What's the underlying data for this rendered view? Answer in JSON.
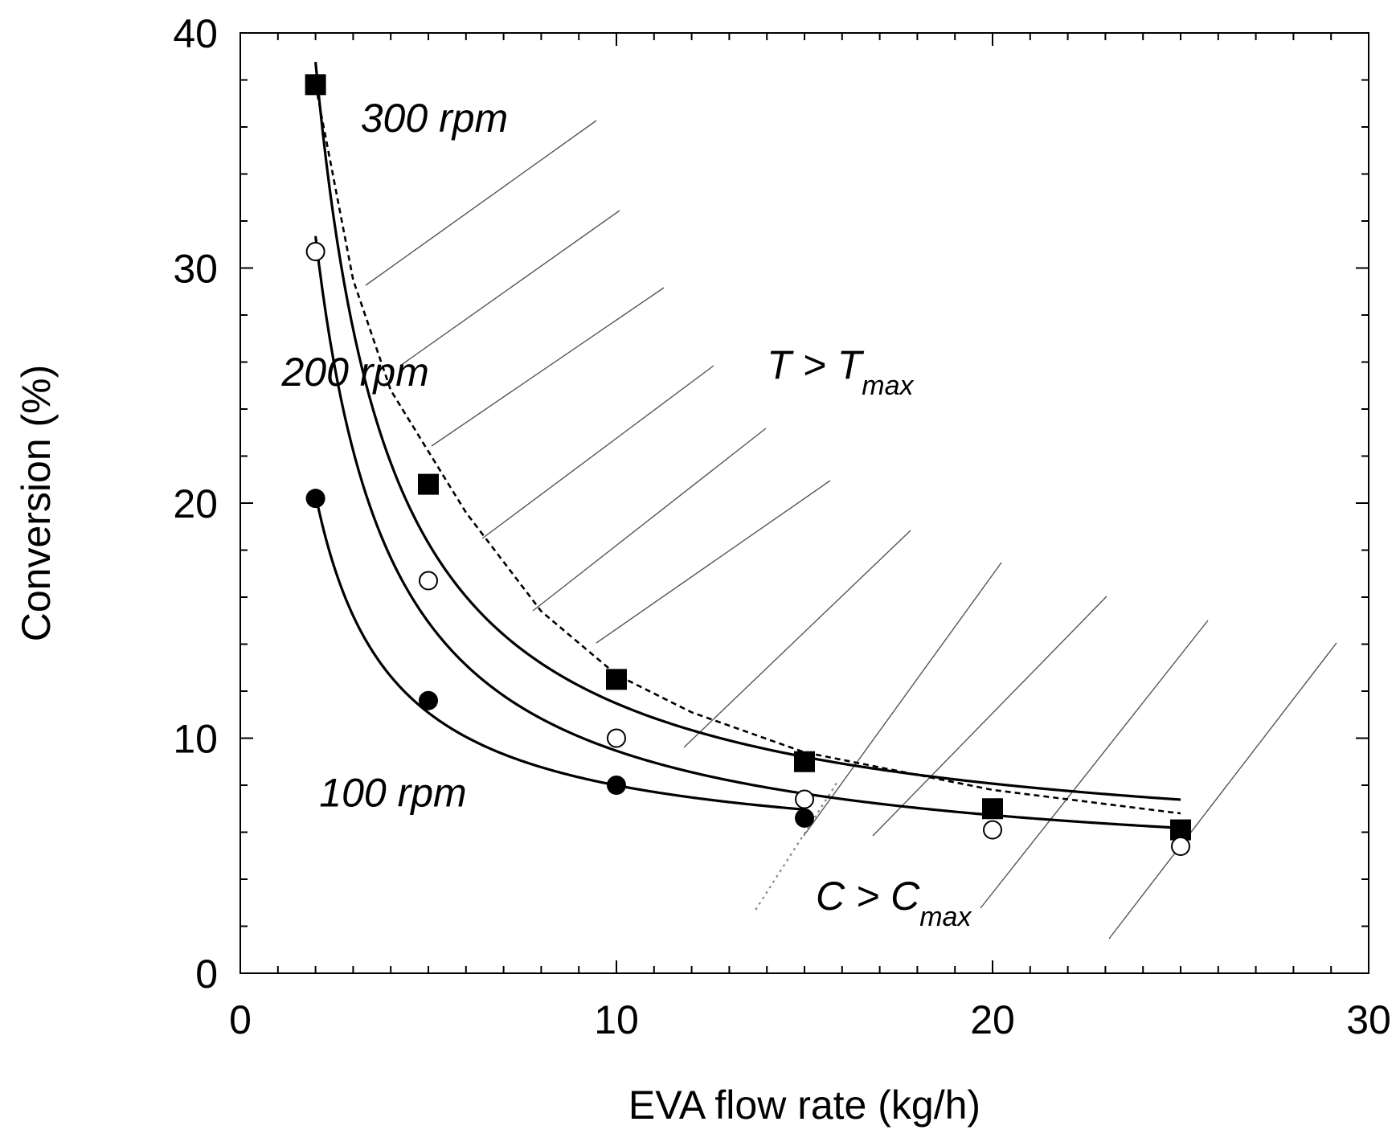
{
  "chart_data": {
    "type": "scatter",
    "xlabel": "EVA flow rate (kg/h)",
    "ylabel": "Conversion (%)",
    "xlim": [
      0,
      30
    ],
    "ylim": [
      0,
      40
    ],
    "x_ticks": [
      0,
      10,
      20,
      30
    ],
    "y_ticks": [
      0,
      10,
      20,
      30,
      40
    ],
    "x_minor_step": 1,
    "y_minor_step": 2,
    "grid": false,
    "legend": "none",
    "series": [
      {
        "name": "300 rpm",
        "marker": "filled-square",
        "x": [
          2,
          5,
          10,
          15,
          20,
          25
        ],
        "y": [
          37.8,
          20.8,
          12.5,
          9.0,
          7.0,
          6.1
        ],
        "fit": "a/x+b"
      },
      {
        "name": "200 rpm",
        "marker": "open-circle",
        "x": [
          2,
          5,
          10,
          15,
          20,
          25
        ],
        "y": [
          30.7,
          16.7,
          10.0,
          7.4,
          6.1,
          5.4
        ],
        "fit": "a/x+b"
      },
      {
        "name": "100 rpm",
        "marker": "filled-circle",
        "x": [
          2,
          5,
          10,
          15
        ],
        "y": [
          20.2,
          11.6,
          8.0,
          6.6
        ],
        "fit": "a/x+b"
      }
    ],
    "boundaries": [
      {
        "style": "dashed",
        "x": [
          2,
          3,
          4,
          5,
          6,
          8,
          10,
          12,
          15,
          20,
          25
        ],
        "y": [
          37.8,
          29.5,
          24.8,
          22.2,
          19.6,
          15.4,
          12.7,
          11.1,
          9.4,
          7.8,
          6.8
        ]
      },
      {
        "style": "dotted-gray",
        "x": [
          13.7,
          15.9
        ],
        "y": [
          2.7,
          8.2
        ]
      }
    ],
    "annotations": [
      {
        "text": "300 rpm",
        "x": 3.2,
        "y": 35.8
      },
      {
        "text": "200 rpm",
        "x": 1.1,
        "y": 25.0
      },
      {
        "text": "100 rpm",
        "x": 2.1,
        "y": 7.1
      }
    ],
    "regions": [
      {
        "main": "T > T",
        "sub": "max",
        "x": 14.0,
        "y": 25.3
      },
      {
        "main": "C > C",
        "sub": "max",
        "x": 15.3,
        "y": 2.7
      }
    ]
  }
}
